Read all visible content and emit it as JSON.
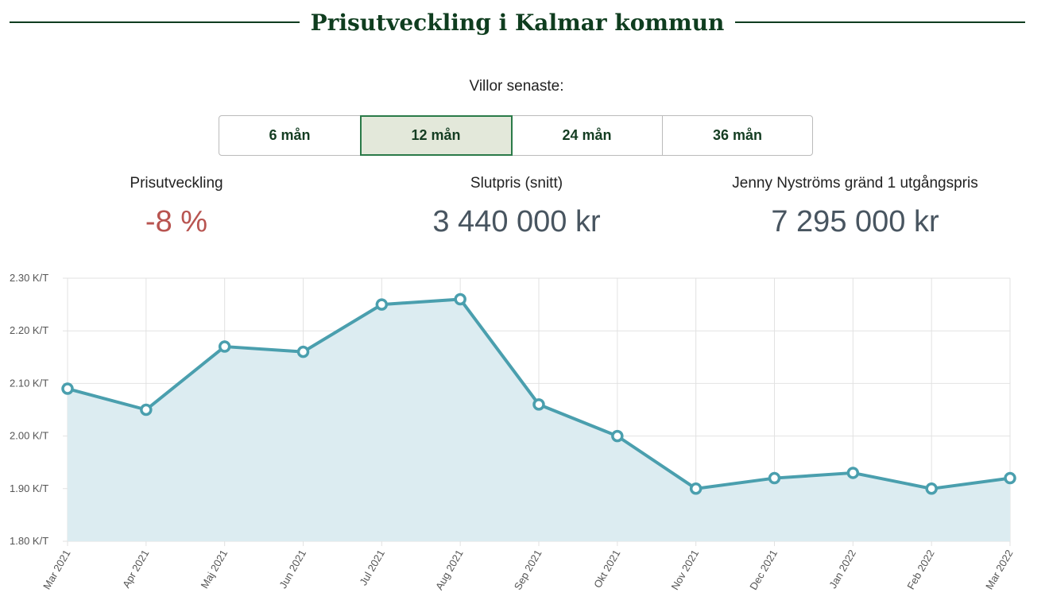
{
  "header": {
    "title": "Prisutveckling i Kalmar kommun"
  },
  "period": {
    "label": "Villor senaste:",
    "options": [
      "6 mån",
      "12 mån",
      "24 mån",
      "36 mån"
    ],
    "selected": "12 mån"
  },
  "stats": {
    "change_label": "Prisutveckling",
    "change_value": "-8 %",
    "avg_label": "Slutpris (snitt)",
    "avg_value": "3 440 000 kr",
    "asking_label": "Jenny Nyströms gränd 1 utgångspris",
    "asking_value": "7 295 000 kr"
  },
  "colors": {
    "line": "#4a9fae",
    "fill": "#dcecf1",
    "negative": "#b85450",
    "accent": "#0f3d1f"
  },
  "chart_data": {
    "type": "area",
    "categories": [
      "Mar 2021",
      "Apr 2021",
      "Maj 2021",
      "Jun 2021",
      "Jul 2021",
      "Aug 2021",
      "Sep 2021",
      "Okt 2021",
      "Nov 2021",
      "Dec 2021",
      "Jan 2022",
      "Feb 2022",
      "Mar 2022"
    ],
    "series": [
      {
        "values": [
          2.09,
          2.05,
          2.17,
          2.16,
          2.25,
          2.26,
          2.06,
          2.0,
          1.9,
          1.92,
          1.93,
          1.9,
          1.92
        ]
      }
    ],
    "ylim": [
      1.8,
      2.3
    ],
    "yticks": [
      1.8,
      1.9,
      2.0,
      2.1,
      2.2,
      2.3
    ],
    "ytick_labels": [
      "1.80 K/T",
      "1.90 K/T",
      "2.00 K/T",
      "2.10 K/T",
      "2.20 K/T",
      "2.30 K/T"
    ],
    "grid": true
  }
}
